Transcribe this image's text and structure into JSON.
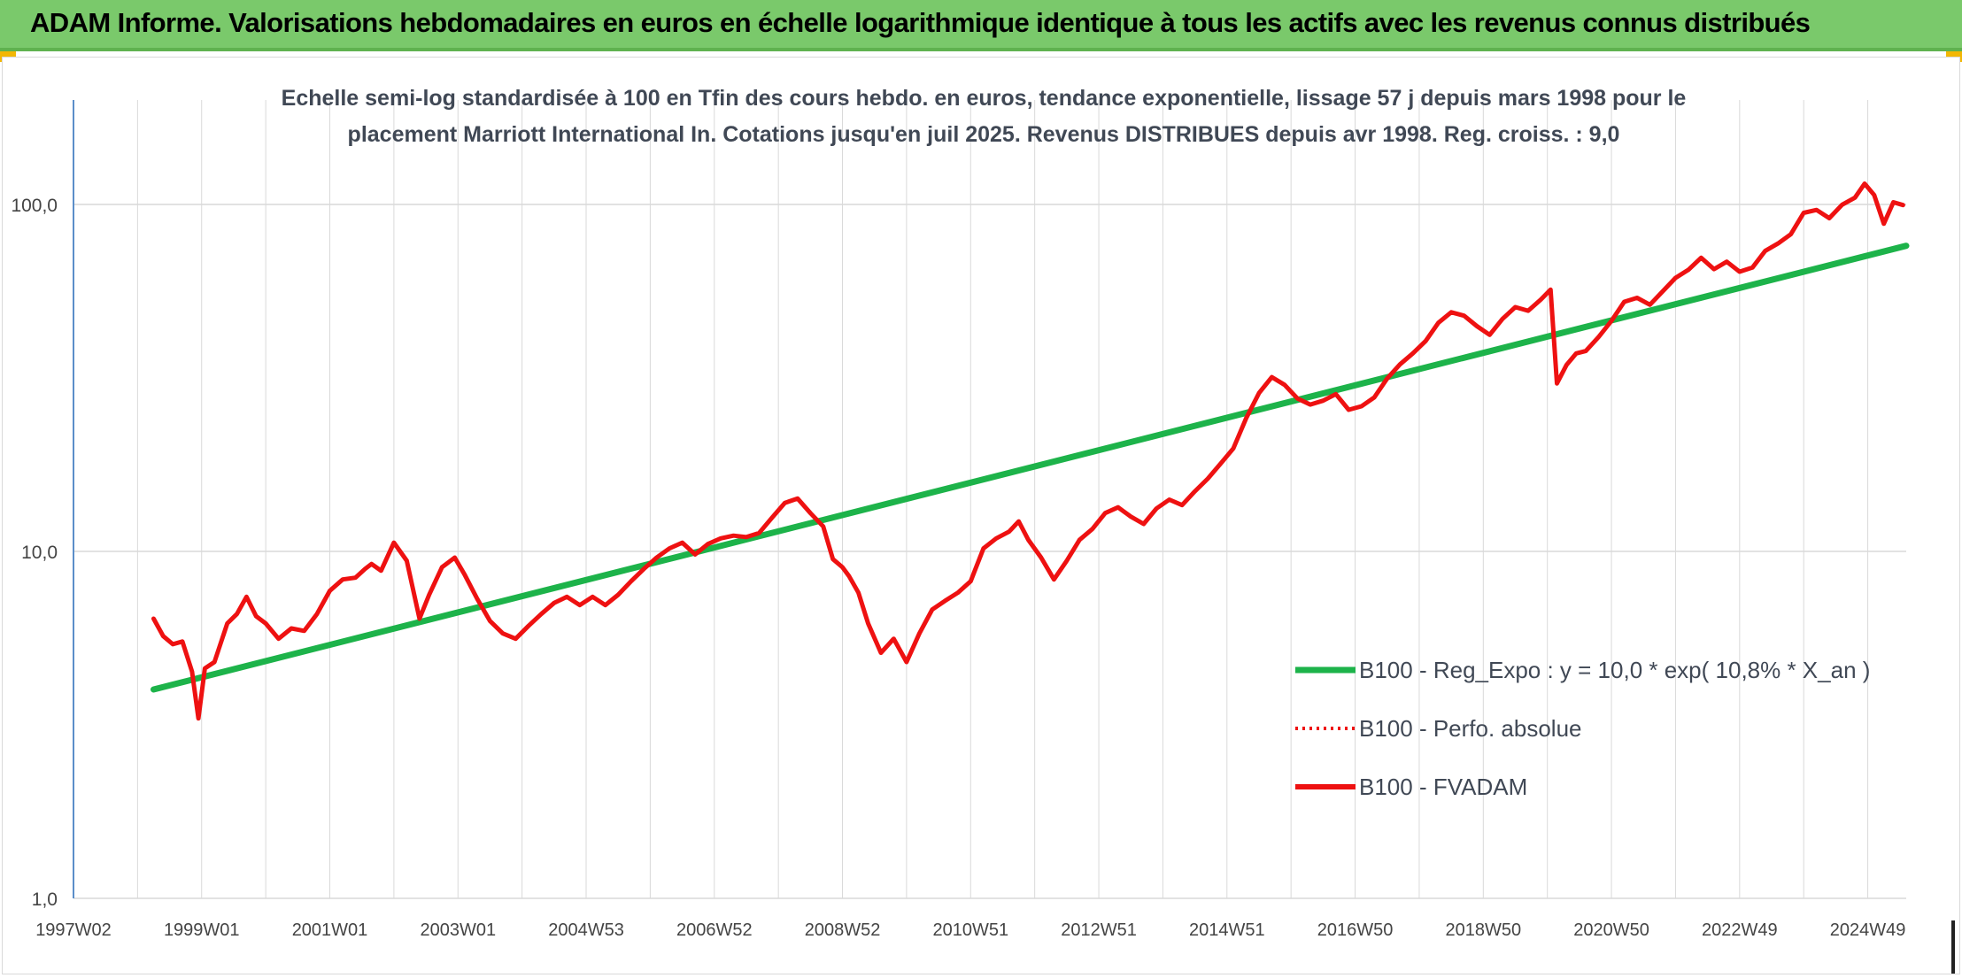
{
  "banner": {
    "title": "ADAM Informe. Valorisations hebdomadaires en euros en échelle logarithmique identique à tous les actifs avec les revenus connus distribués"
  },
  "colors": {
    "banner_bg": "#7ac96b",
    "regression": "#1db34a",
    "fvadam": "#ee1111",
    "perfo": "#ee1111",
    "grid": "#d9d9d9",
    "axis_text": "#444444"
  },
  "chart_data": {
    "type": "line",
    "title": "Echelle semi-log standardisée à 100 en Tfin des cours hebdo. en euros, tendance exponentielle, lissage 57 j depuis mars 1998 pour le",
    "subtitle": "placement Marriott International In. Cotations jusqu'en juil 2025. Revenus DISTRIBUES depuis avr 1998. Reg. croiss. : 9,0",
    "yscale": "log",
    "ylim": [
      1,
      200
    ],
    "xlim": [
      1997.0,
      2025.6
    ],
    "y_ticks": [
      {
        "value": 1,
        "label": "1,0"
      },
      {
        "value": 10,
        "label": "10,0"
      },
      {
        "value": 100,
        "label": "100,0"
      }
    ],
    "x_ticks": [
      {
        "value": 1997.0,
        "label": "1997W02"
      },
      {
        "value": 1999.0,
        "label": "1999W01"
      },
      {
        "value": 2001.0,
        "label": "2001W01"
      },
      {
        "value": 2003.0,
        "label": "2003W01"
      },
      {
        "value": 2005.0,
        "label": "2004W53"
      },
      {
        "value": 2007.0,
        "label": "2006W52"
      },
      {
        "value": 2009.0,
        "label": "2008W52"
      },
      {
        "value": 2011.0,
        "label": "2010W51"
      },
      {
        "value": 2013.0,
        "label": "2012W51"
      },
      {
        "value": 2015.0,
        "label": "2014W51"
      },
      {
        "value": 2017.0,
        "label": "2016W50"
      },
      {
        "value": 2019.0,
        "label": "2018W50"
      },
      {
        "value": 2021.0,
        "label": "2020W50"
      },
      {
        "value": 2023.0,
        "label": "2022W49"
      },
      {
        "value": 2025.0,
        "label": "2024W49"
      }
    ],
    "grid": true,
    "legend_position": "bottom-right",
    "series": [
      {
        "name": "B100 - Reg_Expo : y = 10,0 * exp( 10,8% *  X_an )",
        "style": "solid",
        "x": [
          1998.25,
          2025.6
        ],
        "y": [
          4.0,
          76.0
        ]
      },
      {
        "name": "B100 - Perfo. absolue",
        "style": "dotted",
        "x": [],
        "y": []
      },
      {
        "name": "B100 - FVADAM",
        "style": "solid",
        "x": [
          1998.25,
          1998.4,
          1998.55,
          1998.7,
          1998.85,
          1998.95,
          1999.05,
          1999.2,
          1999.4,
          1999.55,
          1999.7,
          1999.85,
          2000.0,
          2000.2,
          2000.4,
          2000.6,
          2000.8,
          2001.0,
          2001.2,
          2001.4,
          2001.55,
          2001.65,
          2001.8,
          2002.0,
          2002.2,
          2002.4,
          2002.55,
          2002.75,
          2002.95,
          2003.1,
          2003.3,
          2003.5,
          2003.7,
          2003.9,
          2004.1,
          2004.3,
          2004.5,
          2004.7,
          2004.9,
          2005.1,
          2005.3,
          2005.5,
          2005.7,
          2005.9,
          2006.1,
          2006.3,
          2006.5,
          2006.7,
          2006.9,
          2007.1,
          2007.3,
          2007.5,
          2007.7,
          2007.9,
          2008.1,
          2008.3,
          2008.5,
          2008.7,
          2008.85,
          2009.0,
          2009.1,
          2009.25,
          2009.4,
          2009.6,
          2009.8,
          2010.0,
          2010.2,
          2010.4,
          2010.6,
          2010.8,
          2011.0,
          2011.2,
          2011.4,
          2011.6,
          2011.75,
          2011.9,
          2012.1,
          2012.3,
          2012.5,
          2012.7,
          2012.9,
          2013.1,
          2013.3,
          2013.5,
          2013.7,
          2013.9,
          2014.1,
          2014.3,
          2014.5,
          2014.7,
          2014.9,
          2015.1,
          2015.3,
          2015.5,
          2015.7,
          2015.9,
          2016.1,
          2016.3,
          2016.5,
          2016.7,
          2016.9,
          2017.1,
          2017.3,
          2017.5,
          2017.7,
          2017.9,
          2018.1,
          2018.3,
          2018.5,
          2018.7,
          2018.9,
          2019.1,
          2019.3,
          2019.5,
          2019.7,
          2019.9,
          2020.05,
          2020.15,
          2020.3,
          2020.45,
          2020.6,
          2020.8,
          2021.0,
          2021.2,
          2021.4,
          2021.6,
          2021.8,
          2022.0,
          2022.2,
          2022.4,
          2022.6,
          2022.8,
          2023.0,
          2023.2,
          2023.4,
          2023.6,
          2023.8,
          2024.0,
          2024.2,
          2024.4,
          2024.6,
          2024.8,
          2024.95,
          2025.1,
          2025.25,
          2025.4,
          2025.55
        ],
        "y": [
          6.4,
          5.7,
          5.4,
          5.5,
          4.5,
          3.3,
          4.6,
          4.8,
          6.2,
          6.6,
          7.4,
          6.5,
          6.2,
          5.6,
          6.0,
          5.9,
          6.6,
          7.7,
          8.3,
          8.4,
          8.9,
          9.2,
          8.8,
          10.6,
          9.4,
          6.4,
          7.5,
          9.0,
          9.6,
          8.6,
          7.3,
          6.3,
          5.8,
          5.6,
          6.1,
          6.6,
          7.1,
          7.4,
          7.0,
          7.4,
          7.0,
          7.5,
          8.2,
          8.9,
          9.6,
          10.2,
          10.6,
          9.8,
          10.5,
          10.9,
          11.1,
          11.0,
          11.3,
          12.5,
          13.8,
          14.2,
          12.9,
          11.8,
          9.5,
          9.0,
          8.5,
          7.6,
          6.2,
          5.1,
          5.6,
          4.8,
          5.8,
          6.8,
          7.2,
          7.6,
          8.2,
          10.2,
          10.9,
          11.4,
          12.2,
          10.8,
          9.6,
          8.3,
          9.4,
          10.8,
          11.6,
          12.9,
          13.4,
          12.6,
          12.0,
          13.3,
          14.1,
          13.6,
          14.9,
          16.2,
          17.9,
          19.8,
          24.2,
          28.6,
          31.8,
          30.2,
          27.6,
          26.5,
          27.2,
          28.4,
          25.6,
          26.2,
          27.8,
          31.5,
          34.6,
          37.2,
          40.4,
          45.6,
          48.9,
          47.8,
          44.6,
          42.1,
          46.8,
          50.6,
          49.4,
          53.2,
          56.8,
          30.5,
          34.5,
          37.2,
          37.8,
          41.5,
          46.2,
          52.4,
          53.8,
          51.4,
          56.2,
          61.4,
          64.8,
          70.2,
          65.1,
          68.4,
          64.0,
          65.8,
          73.5,
          77.2,
          82.1,
          94.6,
          96.4,
          91.3,
          99.8,
          104.6,
          114.8,
          106.5,
          88.0,
          101.5,
          99.6
        ]
      }
    ]
  }
}
